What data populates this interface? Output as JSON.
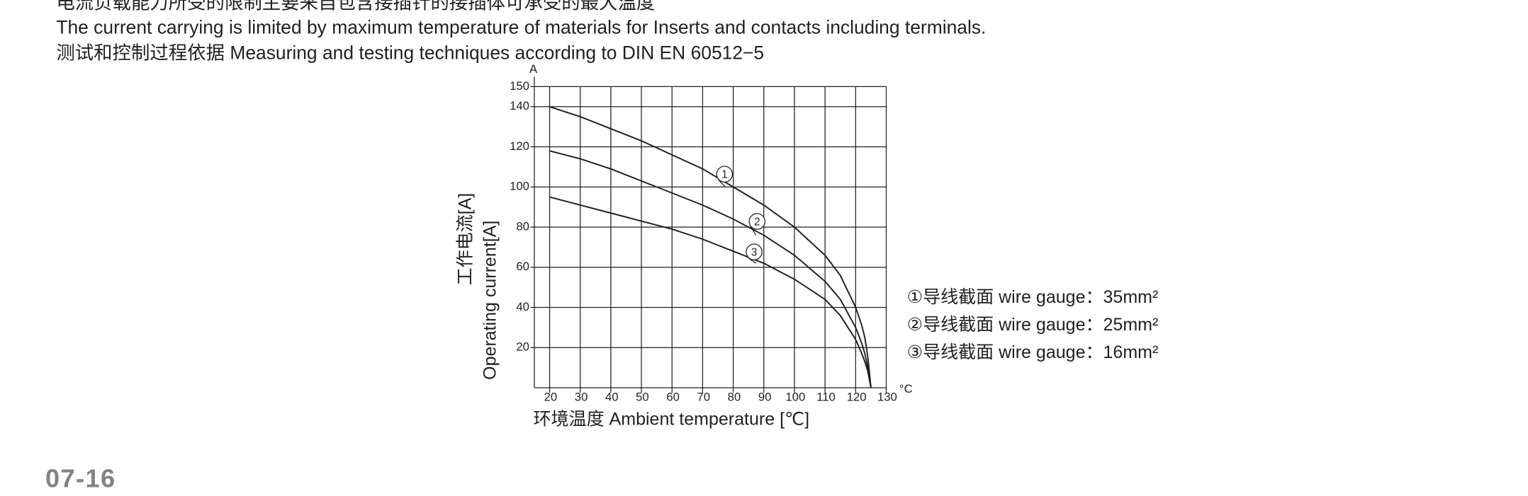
{
  "header": {
    "lines": [
      "电流负载能力所受的限制主要来自包含接插针的接插体可承受的最大温度",
      "The current carrying is limited by maximum temperature of materials for Inserts and contacts including terminals.",
      "测试和控制过程依据 Measuring and testing techniques according to DIN EN 60512−5"
    ]
  },
  "footer": {
    "page": "07-16"
  },
  "chart_data": {
    "type": "line",
    "y_label": [
      "工作电流[A]",
      "Operating current[A]"
    ],
    "y_unit": "A",
    "x_label": "环境温度 Ambient temperature [℃]",
    "x_unit": "°C",
    "x": [
      20,
      30,
      40,
      50,
      60,
      70,
      80,
      90,
      100,
      110,
      115,
      120,
      122,
      123,
      124,
      125
    ],
    "series": [
      {
        "name": "①导线截面 wire gauge：35mm²",
        "label": "1",
        "color": "#231f20",
        "values": [
          140,
          135,
          129,
          123,
          116,
          109,
          100,
          91,
          80,
          66,
          56,
          40,
          31,
          25,
          15,
          0
        ]
      },
      {
        "name": "②导线截面 wire gauge：25mm²",
        "label": "2",
        "color": "#231f20",
        "values": [
          118,
          114,
          109,
          103,
          97,
          91,
          84,
          76,
          66,
          53,
          44,
          30,
          22,
          17,
          10,
          0
        ]
      },
      {
        "name": "③导线截面 wire gauge：16mm²",
        "label": "3",
        "color": "#231f20",
        "values": [
          95,
          91,
          87,
          83,
          79,
          74,
          68,
          62,
          54,
          44,
          36,
          24,
          17,
          13,
          8,
          0
        ]
      }
    ],
    "xlim": [
      15,
      130
    ],
    "xticks": [
      20,
      30,
      40,
      50,
      60,
      70,
      80,
      90,
      100,
      110,
      120,
      130
    ],
    "ylim": [
      0,
      150
    ],
    "yticks": [
      20,
      40,
      60,
      80,
      100,
      120,
      140,
      150
    ],
    "grid": true
  }
}
